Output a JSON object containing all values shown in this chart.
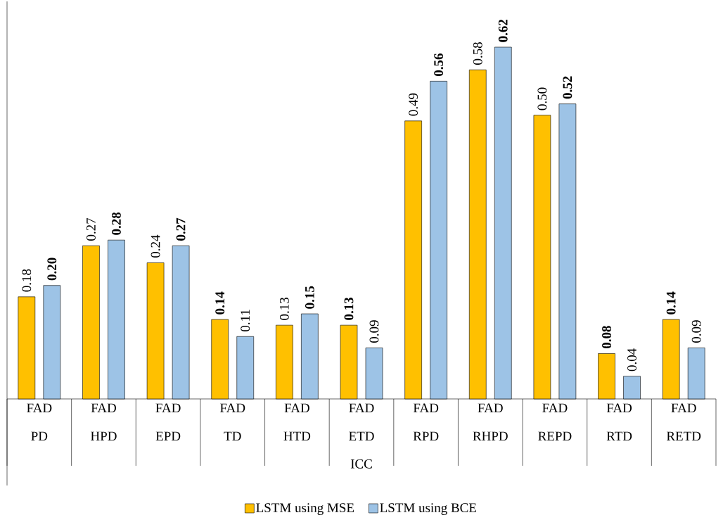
{
  "chart_data": {
    "type": "bar",
    "xlabel": "ICC",
    "categories": [
      "FAD PD",
      "FAD HPD",
      "FAD EPD",
      "FAD TD",
      "FAD HTD",
      "FAD ETD",
      "FAD RPD",
      "FAD RHPD",
      "FAD REPD",
      "FAD RTD",
      "FAD RETD"
    ],
    "series": [
      {
        "name": "LSTM using MSE",
        "color": "#ffc000",
        "values": [
          0.18,
          0.27,
          0.24,
          0.14,
          0.13,
          0.13,
          0.49,
          0.58,
          0.5,
          0.08,
          0.14
        ],
        "value_labels": [
          "0.18",
          "0.27",
          "0.24",
          "**0.14**",
          "0.13",
          "**0.13**",
          "0.49",
          "0.58",
          "0.50",
          "**0.08**",
          "**0.14**"
        ]
      },
      {
        "name": "LSTM using BCE",
        "color": "#9dc3e6",
        "values": [
          0.2,
          0.28,
          0.27,
          0.11,
          0.15,
          0.09,
          0.56,
          0.62,
          0.52,
          0.04,
          0.09
        ],
        "value_labels": [
          "**0.20**",
          "**0.28**",
          "**0.27**",
          "0.11",
          "**0.15**",
          "0.09",
          "**0.56**",
          "**0.62**",
          "**0.52**",
          "0.04",
          "0.09"
        ]
      }
    ],
    "legend": "bottom"
  }
}
